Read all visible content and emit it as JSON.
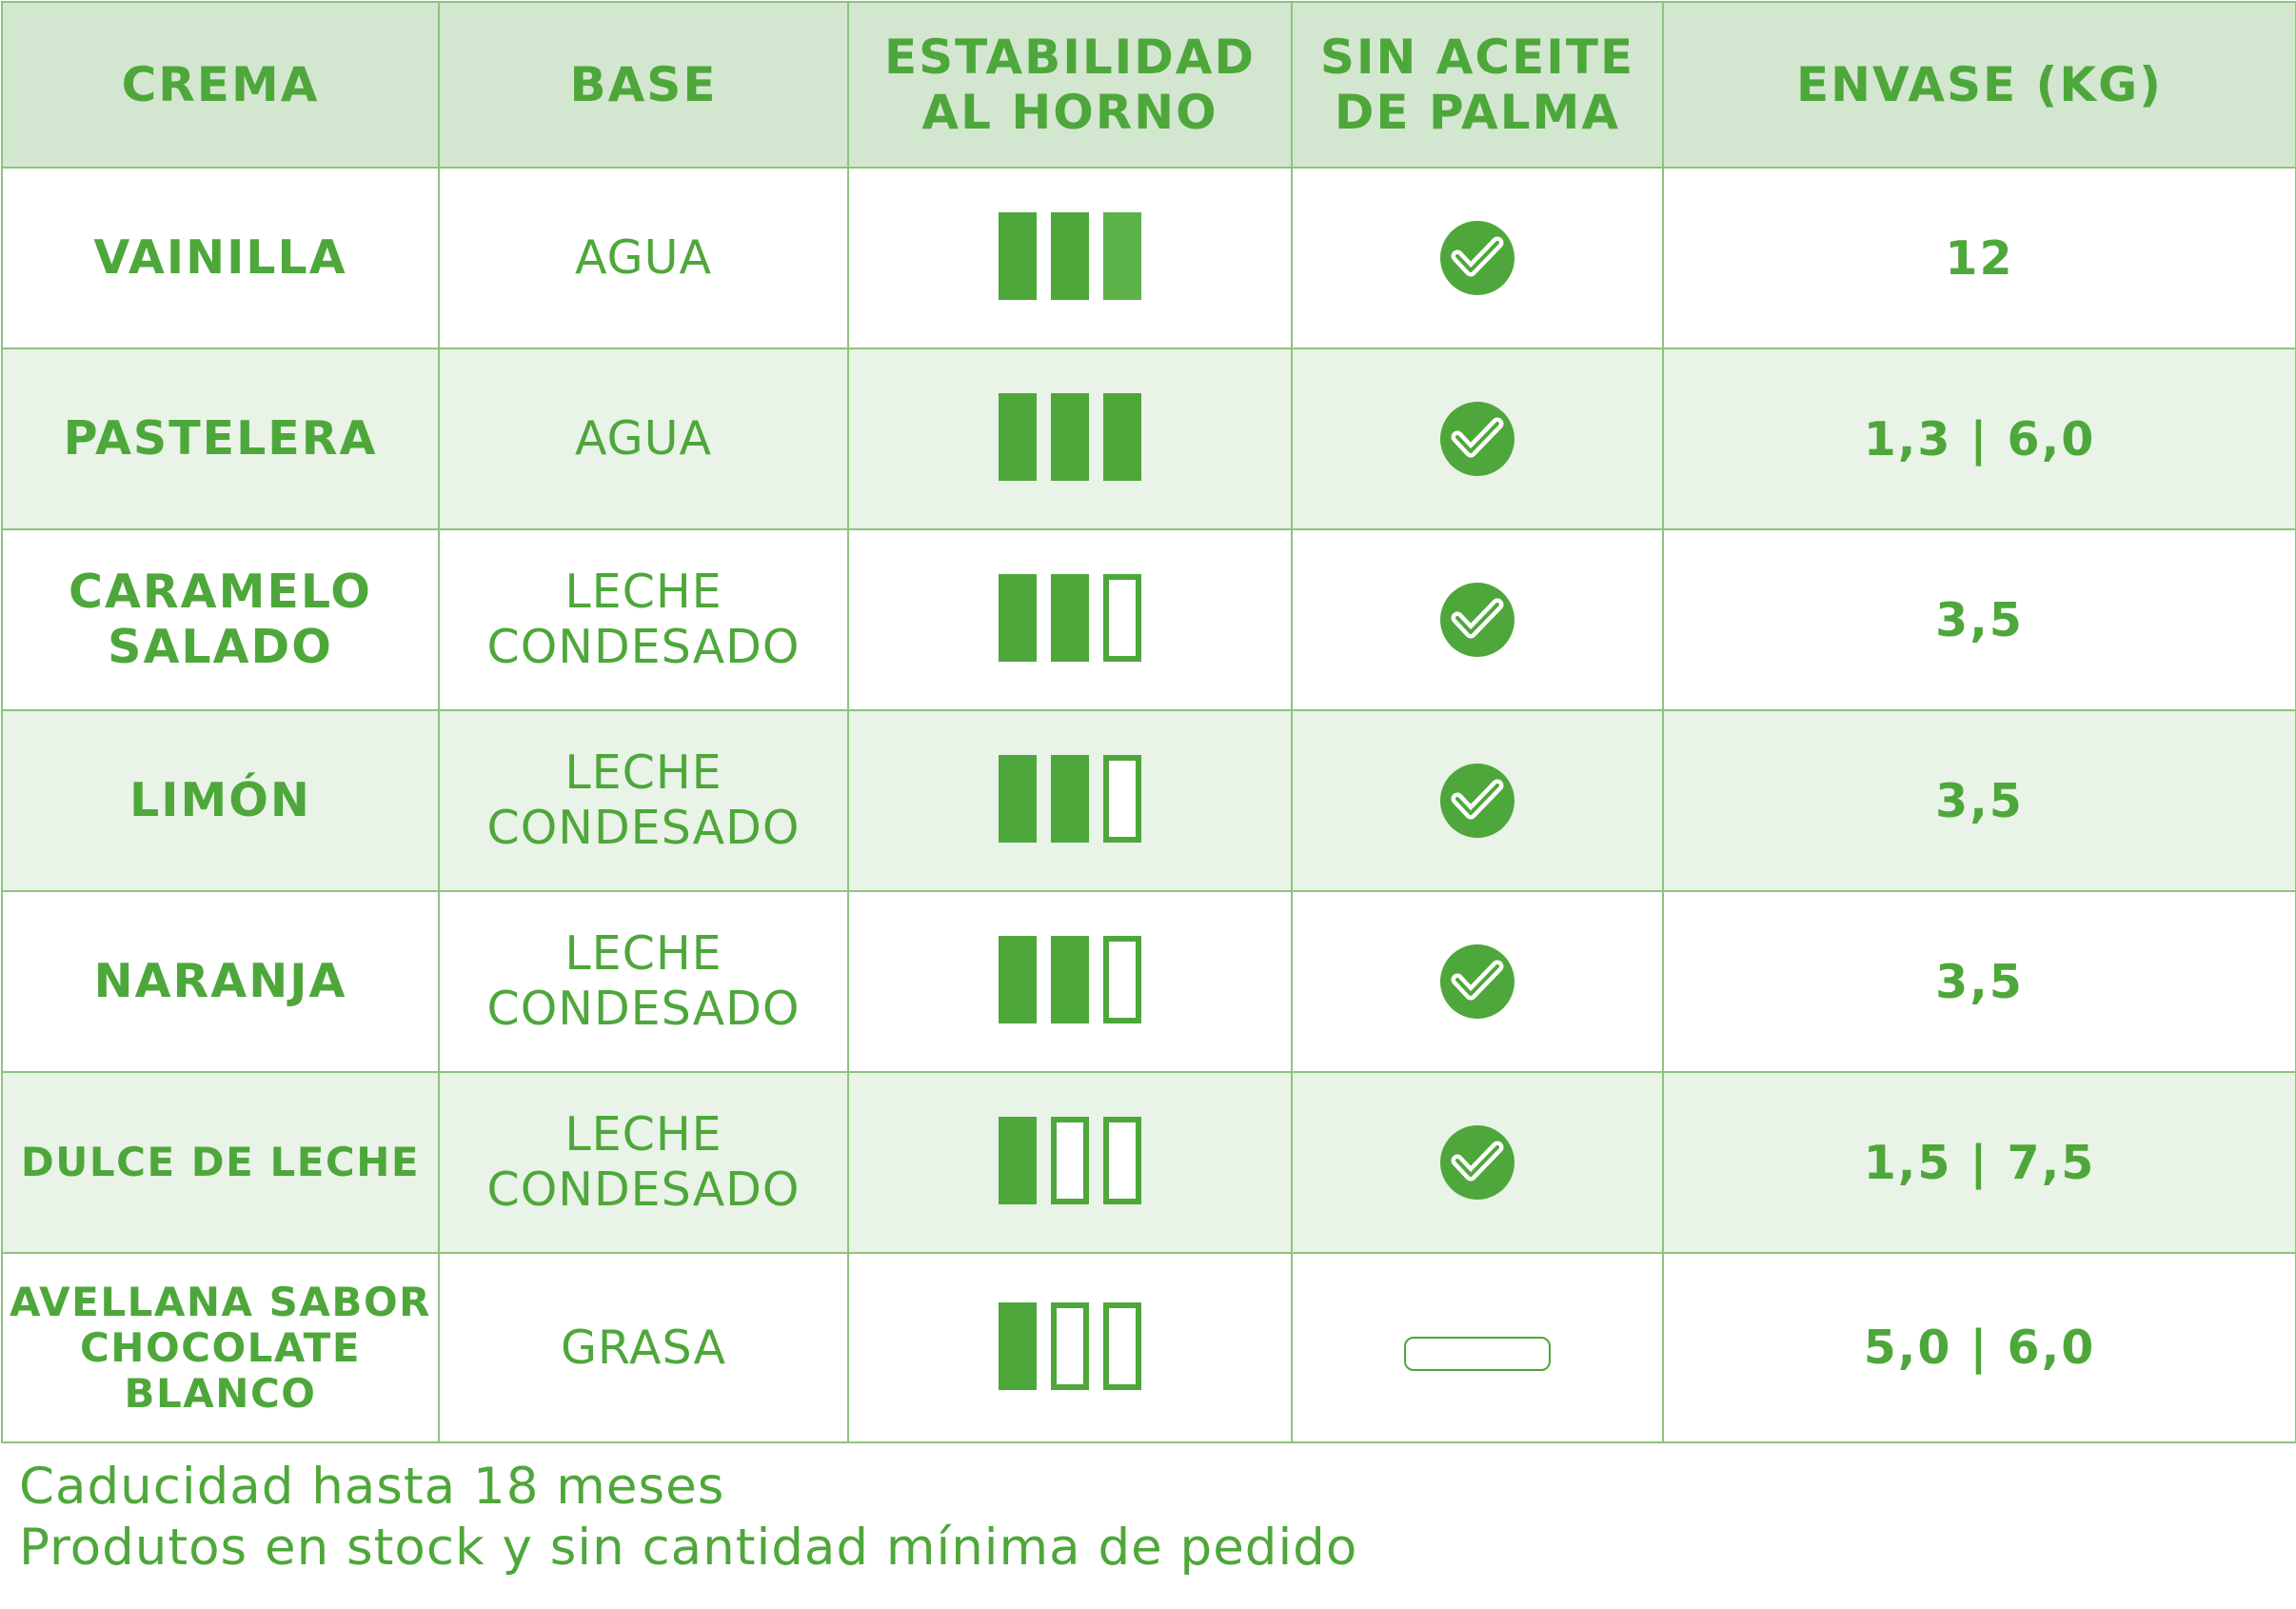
{
  "headers": {
    "crema": "CREMA",
    "base": "BASE",
    "estabilidad_1": "ESTABILIDAD",
    "estabilidad_2": "AL HORNO",
    "sin_aceite_1": "SIN ACEITE",
    "sin_aceite_2": "DE PALMA",
    "envase": "ENVASE (KG)"
  },
  "rows": [
    {
      "name": [
        "VAINILLA"
      ],
      "base": [
        "AGUA"
      ],
      "stability": 3,
      "palm_free": true,
      "envase": "12"
    },
    {
      "name": [
        "PASTELERA"
      ],
      "base": [
        "AGUA"
      ],
      "stability": 3,
      "palm_free": true,
      "envase": "1,3 | 6,0"
    },
    {
      "name": [
        "CARAMELO",
        "SALADO"
      ],
      "base": [
        "LECHE",
        "CONDESADO"
      ],
      "stability": 2,
      "palm_free": true,
      "envase": "3,5"
    },
    {
      "name": [
        "LIMÓN"
      ],
      "base": [
        "LECHE",
        "CONDESADO"
      ],
      "stability": 2,
      "palm_free": true,
      "envase": "3,5"
    },
    {
      "name": [
        "NARANJA"
      ],
      "base": [
        "LECHE",
        "CONDESADO"
      ],
      "stability": 2,
      "palm_free": true,
      "envase": "3,5"
    },
    {
      "name": [
        "DULCE DE LECHE"
      ],
      "base": [
        "LECHE",
        "CONDESADO"
      ],
      "stability": 1,
      "palm_free": true,
      "envase": "1,5 | 7,5"
    },
    {
      "name": [
        "AVELLANA SABOR",
        "CHOCOLATE",
        "BLANCO"
      ],
      "base": [
        "GRASA"
      ],
      "stability": 1,
      "palm_free": false,
      "envase": "5,0 | 6,0"
    }
  ],
  "notes": [
    "Caducidad hasta 18 meses",
    "Produtos en stock y sin cantidad mínima de pedido"
  ],
  "colors": {
    "accent": "#4ea73a",
    "header_bg": "#d3e6d0",
    "row_alt_bg": "#e9f3e7",
    "border": "#8cc47d"
  },
  "icons": {
    "palm_free": "check-circle-icon",
    "not_palm_free": "empty-pill-icon"
  }
}
